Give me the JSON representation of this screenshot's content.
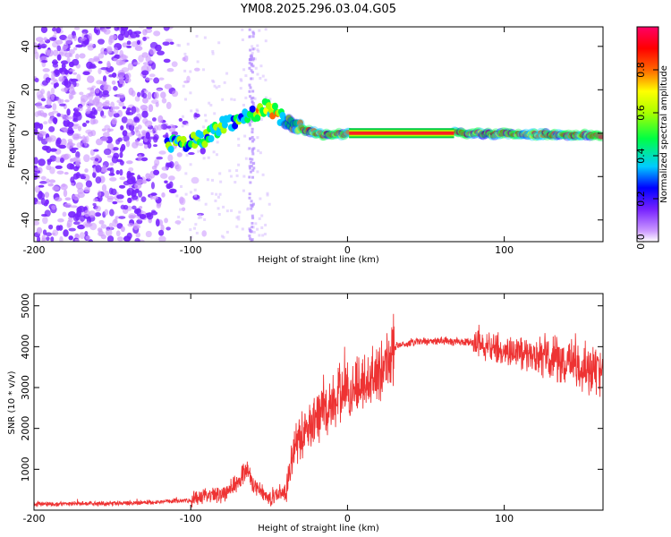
{
  "title": "YM08.2025.296.03.04.G05",
  "chart_data": [
    {
      "type": "heatmap",
      "name": "spectrogram",
      "xlabel": "Height of straight line (km)",
      "ylabel": "Frequency (Hz)",
      "xlim": [
        -200,
        163
      ],
      "ylim": [
        -50,
        49
      ],
      "xticks": [
        -200,
        -100,
        0,
        100
      ],
      "yticks": [
        -40,
        -20,
        0,
        20,
        40
      ],
      "colorbar": {
        "label": "Normalized spectral amplitude",
        "range": [
          0,
          1
        ],
        "ticks": [
          0.0,
          0.2,
          0.4,
          0.6,
          0.8
        ],
        "colors": [
          "#ffffff",
          "#cc99ff",
          "#7722ff",
          "#0000ff",
          "#00ccff",
          "#00ff44",
          "#aaff00",
          "#ffff00",
          "#ff6600",
          "#ff0000",
          "#ff0066"
        ]
      },
      "tone_track": [
        {
          "x": -115,
          "y": -5
        },
        {
          "x": -100,
          "y": -4
        },
        {
          "x": -90,
          "y": -2
        },
        {
          "x": -80,
          "y": 4
        },
        {
          "x": -70,
          "y": 6
        },
        {
          "x": -60,
          "y": 9
        },
        {
          "x": -52,
          "y": 12
        },
        {
          "x": -45,
          "y": 9
        },
        {
          "x": -38,
          "y": 5
        },
        {
          "x": -30,
          "y": 2
        },
        {
          "x": -20,
          "y": 0
        },
        {
          "x": -10,
          "y": -1
        },
        {
          "x": 0,
          "y": 0
        },
        {
          "x": 70,
          "y": 0
        },
        {
          "x": 163,
          "y": -1
        }
      ]
    },
    {
      "type": "line",
      "name": "snr",
      "xlabel": "Height of straight line (km)",
      "ylabel": "SNR (10 * v/v)",
      "xlim": [
        -200,
        163
      ],
      "ylim": [
        0,
        5300
      ],
      "xticks": [
        -200,
        -100,
        0,
        100
      ],
      "yticks": [
        1000,
        2000,
        3000,
        4000,
        5000
      ],
      "color": "#ee3333",
      "series": [
        {
          "name": "SNR envelope",
          "x": [
            -200,
            -150,
            -120,
            -100,
            -80,
            -70,
            -65,
            -60,
            -50,
            -40,
            -37,
            -35,
            -30,
            -20,
            -10,
            -5,
            0,
            10,
            20,
            25,
            30,
            40,
            60,
            80,
            100,
            120,
            140,
            163
          ],
          "y": [
            150,
            160,
            200,
            250,
            400,
            700,
            1000,
            600,
            300,
            450,
            900,
            1400,
            1800,
            2200,
            2600,
            2800,
            2900,
            3100,
            3300,
            3700,
            4000,
            4100,
            4150,
            4100,
            3900,
            3800,
            3600,
            3400
          ]
        }
      ]
    }
  ]
}
